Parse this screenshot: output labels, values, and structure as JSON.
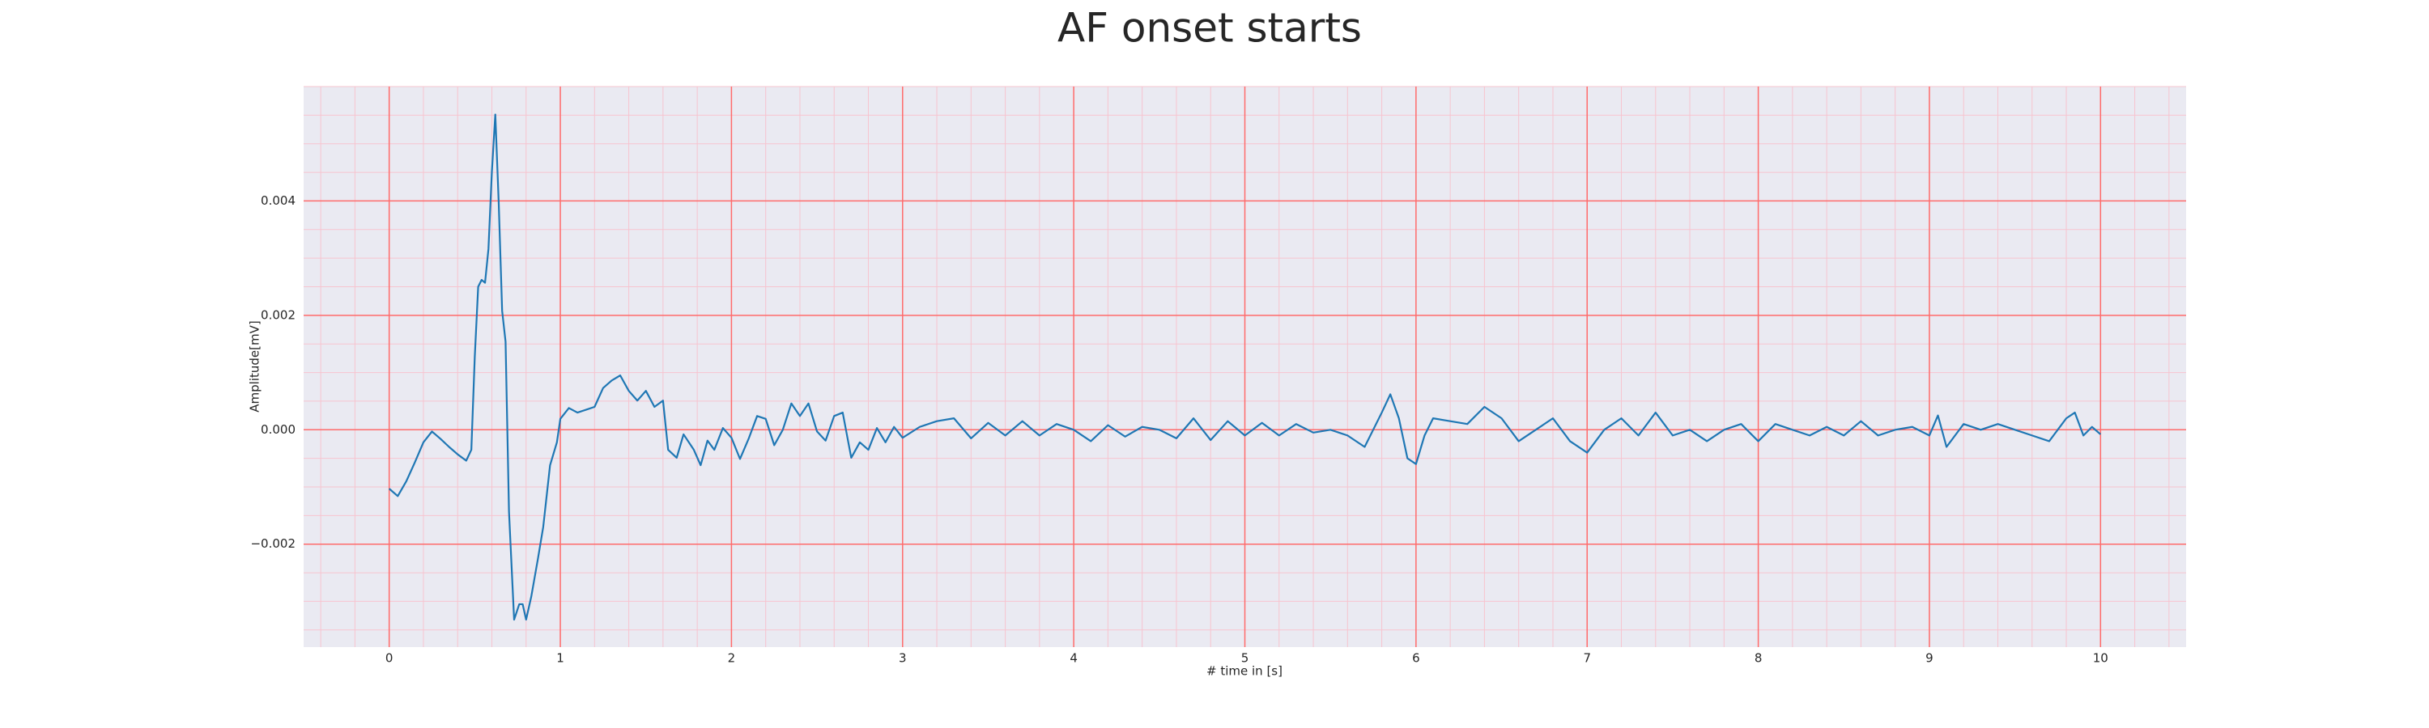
{
  "chart_data": {
    "type": "line",
    "title": "AF onset starts",
    "xlabel": "# time in [s]",
    "ylabel": "Amplitude[mV]",
    "color": "#1f77b4",
    "grid": true,
    "grid_color": "#ff6b6b",
    "minor_grid_color": "#f7c4cf",
    "minor_grid": {
      "x": 0.2,
      "y": 0.0005
    },
    "xlim": [
      -0.5,
      10.5
    ],
    "ylim": [
      -0.0038,
      0.006
    ],
    "xticks": [
      0,
      1,
      2,
      3,
      4,
      5,
      6,
      7,
      8,
      9,
      10
    ],
    "yticks": [
      {
        "value": -0.002,
        "label": "−0.002"
      },
      {
        "value": 0,
        "label": "0.000"
      },
      {
        "value": 0.002,
        "label": "0.002"
      },
      {
        "value": 0.004,
        "label": "0.004"
      }
    ],
    "x": [
      0,
      0.05,
      0.1,
      0.15,
      0.2,
      0.25,
      0.3,
      0.35,
      0.4,
      0.45,
      0.48,
      0.5,
      0.52,
      0.54,
      0.56,
      0.58,
      0.6,
      0.62,
      0.64,
      0.66,
      0.68,
      0.7,
      0.73,
      0.76,
      0.78,
      0.8,
      0.83,
      0.87,
      0.9,
      0.94,
      0.98,
      1.0,
      1.05,
      1.1,
      1.15,
      1.2,
      1.25,
      1.3,
      1.35,
      1.4,
      1.45,
      1.5,
      1.55,
      1.6,
      1.63,
      1.68,
      1.72,
      1.78,
      1.82,
      1.86,
      1.9,
      1.95,
      2.0,
      2.05,
      2.1,
      2.15,
      2.2,
      2.25,
      2.3,
      2.35,
      2.4,
      2.45,
      2.5,
      2.55,
      2.6,
      2.65,
      2.7,
      2.75,
      2.8,
      2.85,
      2.9,
      2.95,
      3.0,
      3.1,
      3.2,
      3.3,
      3.4,
      3.5,
      3.6,
      3.7,
      3.8,
      3.9,
      4.0,
      4.1,
      4.2,
      4.3,
      4.4,
      4.5,
      4.6,
      4.7,
      4.8,
      4.9,
      5.0,
      5.1,
      5.2,
      5.3,
      5.4,
      5.5,
      5.6,
      5.7,
      5.8,
      5.85,
      5.9,
      5.95,
      6.0,
      6.05,
      6.1,
      6.2,
      6.3,
      6.4,
      6.5,
      6.6,
      6.7,
      6.8,
      6.9,
      7.0,
      7.1,
      7.2,
      7.3,
      7.4,
      7.5,
      7.6,
      7.7,
      7.8,
      7.9,
      8.0,
      8.1,
      8.2,
      8.3,
      8.4,
      8.5,
      8.6,
      8.7,
      8.8,
      8.9,
      9.0,
      9.05,
      9.1,
      9.2,
      9.3,
      9.4,
      9.5,
      9.6,
      9.7,
      9.8,
      9.85,
      9.9,
      9.95,
      10.0
    ],
    "series": [
      {
        "values": [
          -0.00103,
          -0.00116,
          -0.0009,
          -0.00057,
          -0.00022,
          -3e-05,
          -0.00016,
          -0.0003,
          -0.00043,
          -0.00054,
          -0.00035,
          0.00127,
          0.0025,
          0.00262,
          0.00257,
          0.00316,
          0.00451,
          0.00551,
          0.00397,
          0.00208,
          0.00154,
          -0.00143,
          -0.00332,
          -0.00305,
          -0.00305,
          -0.00332,
          -0.00292,
          -0.00224,
          -0.0017,
          -0.00062,
          -0.00022,
          0.00019,
          0.00038,
          0.0003,
          0.00035,
          0.0004,
          0.00073,
          0.00086,
          0.00095,
          0.00068,
          0.00051,
          0.00068,
          0.0004,
          0.00051,
          -0.00035,
          -0.00049,
          -8e-05,
          -0.00035,
          -0.00062,
          -0.00019,
          -0.00035,
          3e-05,
          -0.00014,
          -0.00051,
          -0.00016,
          0.00024,
          0.00019,
          -0.00027,
          0,
          0.00046,
          0.00024,
          0.00046,
          -3e-05,
          -0.00019,
          0.00024,
          0.0003,
          -0.00049,
          -0.00022,
          -0.00035,
          3e-05,
          -0.00022,
          5e-05,
          -0.00014,
          5e-05,
          0.00015,
          0.0002,
          -0.00015,
          0.00012,
          -0.0001,
          0.00015,
          -0.0001,
          0.0001,
          0,
          -0.0002,
          8e-05,
          -0.00012,
          5e-05,
          0,
          -0.00015,
          0.0002,
          -0.00018,
          0.00015,
          -0.0001,
          0.00012,
          -0.0001,
          0.0001,
          -5e-05,
          0,
          -0.0001,
          -0.0003,
          0.0003,
          0.00062,
          0.0002,
          -0.0005,
          -0.0006,
          -0.0001,
          0.0002,
          0.00015,
          0.0001,
          0.0004,
          0.0002,
          -0.0002,
          0,
          0.0002,
          -0.0002,
          -0.0004,
          0,
          0.0002,
          -0.0001,
          0.0003,
          -0.0001,
          0,
          -0.0002,
          0,
          0.0001,
          -0.0002,
          0.0001,
          0,
          -0.0001,
          5e-05,
          -0.0001,
          0.00015,
          -0.0001,
          0,
          5e-05,
          -0.0001,
          0.00025,
          -0.0003,
          0.0001,
          0,
          0.0001,
          0,
          -0.0001,
          -0.0002,
          0.0002,
          0.0003,
          -0.0001,
          5e-05,
          -8e-05
        ]
      }
    ]
  }
}
